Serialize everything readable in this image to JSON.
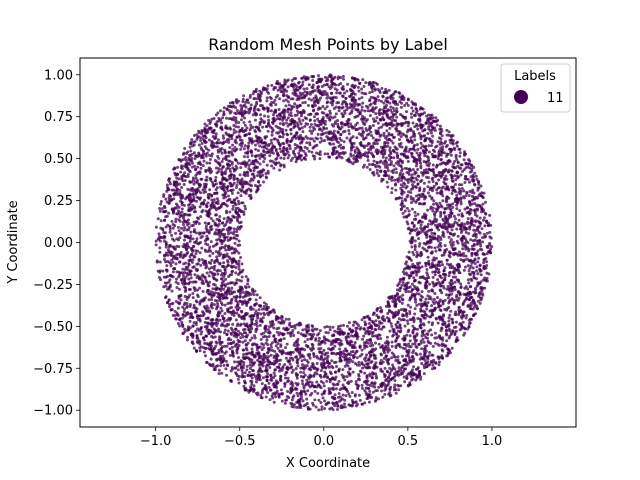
{
  "chart_data": {
    "type": "scatter",
    "title": "Random Mesh Points by Label",
    "xlabel": "X Coordinate",
    "ylabel": "Y Coordinate",
    "xlim": [
      -1.45,
      1.5
    ],
    "ylim": [
      -1.1,
      1.1
    ],
    "x_ticks": [
      -1.0,
      -0.5,
      0.0,
      0.5,
      1.0
    ],
    "x_tick_labels": [
      "−1.0",
      "−0.5",
      "0.0",
      "0.5",
      "1.0"
    ],
    "y_ticks": [
      1.0,
      0.75,
      0.5,
      0.25,
      0.0,
      -0.25,
      -0.5,
      -0.75,
      -1.0
    ],
    "y_tick_labels": [
      "1.00",
      "0.75",
      "0.50",
      "0.25",
      "0.00",
      "−0.25",
      "−0.50",
      "−0.75",
      "−1.00"
    ],
    "grid": false,
    "legend": {
      "title": "Labels",
      "placement": "top-right",
      "entries": [
        {
          "label": "11",
          "color": "#440154"
        }
      ]
    },
    "series": [
      {
        "name": "11",
        "color": "#440154",
        "alpha": 0.75,
        "distribution": "annulus",
        "center": [
          0.0,
          0.0
        ],
        "inner_radius": 0.5,
        "outer_radius": 1.0,
        "approx_point_count": 7000
      }
    ]
  }
}
